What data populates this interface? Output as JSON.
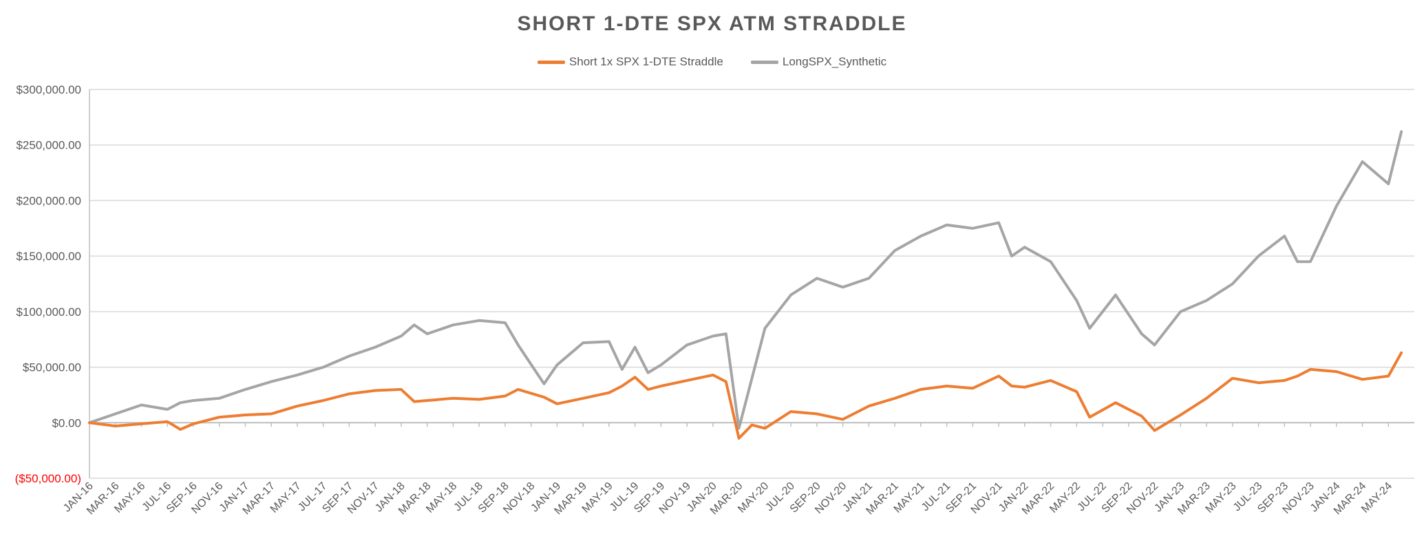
{
  "chart_data": {
    "type": "line",
    "title": "SHORT 1-DTE SPX ATM STRADDLE",
    "xlabel": "",
    "ylabel": "",
    "ylim": [
      -50000,
      300000
    ],
    "y_ticks": [
      300000,
      250000,
      200000,
      150000,
      100000,
      50000,
      0,
      -50000
    ],
    "y_tick_labels": [
      "$300,000.00",
      "$250,000.00",
      "$200,000.00",
      "$150,000.00",
      "$100,000.00",
      "$50,000.00",
      "$0.00",
      "($50,000.00)"
    ],
    "x_tick_labels": [
      "JAN-16",
      "MAR-16",
      "MAY-16",
      "JUL-16",
      "SEP-16",
      "NOV-16",
      "JAN-17",
      "MAR-17",
      "MAY-17",
      "JUL-17",
      "SEP-17",
      "NOV-17",
      "JAN-18",
      "MAR-18",
      "MAY-18",
      "JUL-18",
      "SEP-18",
      "NOV-18",
      "JAN-19",
      "MAR-19",
      "MAY-19",
      "JUL-19",
      "SEP-19",
      "NOV-19",
      "JAN-20",
      "MAR-20",
      "MAY-20",
      "JUL-20",
      "SEP-20",
      "NOV-20",
      "JAN-21",
      "MAR-21",
      "MAY-21",
      "JUL-21",
      "SEP-21",
      "NOV-21",
      "JAN-22",
      "MAR-22",
      "MAY-22",
      "JUL-22",
      "SEP-22",
      "NOV-22",
      "JAN-23",
      "MAR-23",
      "MAY-23",
      "JUL-23",
      "SEP-23",
      "NOV-23",
      "JAN-24",
      "MAR-24",
      "MAY-24"
    ],
    "x": [
      "2016-01",
      "2016-03",
      "2016-05",
      "2016-07",
      "2016-08",
      "2016-09",
      "2016-11",
      "2017-01",
      "2017-03",
      "2017-05",
      "2017-07",
      "2017-09",
      "2017-11",
      "2018-01",
      "2018-02",
      "2018-03",
      "2018-05",
      "2018-07",
      "2018-09",
      "2018-10",
      "2018-12",
      "2019-01",
      "2019-03",
      "2019-05",
      "2019-06",
      "2019-07",
      "2019-08",
      "2019-09",
      "2019-11",
      "2020-01",
      "2020-02",
      "2020-03",
      "2020-04",
      "2020-05",
      "2020-07",
      "2020-09",
      "2020-11",
      "2021-01",
      "2021-03",
      "2021-05",
      "2021-07",
      "2021-09",
      "2021-11",
      "2021-12",
      "2022-01",
      "2022-03",
      "2022-05",
      "2022-06",
      "2022-08",
      "2022-10",
      "2022-11",
      "2023-01",
      "2023-03",
      "2023-05",
      "2023-07",
      "2023-09",
      "2023-10",
      "2023-11",
      "2024-01",
      "2024-03",
      "2024-05",
      "2024-06"
    ],
    "series": [
      {
        "name": "Short 1x SPX 1-DTE Straddle",
        "color": "#ED7D31",
        "values": [
          0,
          -3000,
          -1000,
          1000,
          -6000,
          -1000,
          5000,
          7000,
          8000,
          15000,
          20000,
          26000,
          29000,
          30000,
          19000,
          20000,
          22000,
          21000,
          24000,
          30000,
          23000,
          17000,
          22000,
          27000,
          33000,
          41000,
          30000,
          33000,
          38000,
          43000,
          37000,
          -14000,
          -2000,
          -5000,
          10000,
          8000,
          3000,
          15000,
          22000,
          30000,
          33000,
          31000,
          42000,
          33000,
          32000,
          38000,
          28000,
          5000,
          18000,
          6000,
          -7000,
          7000,
          22000,
          40000,
          36000,
          38000,
          42000,
          48000,
          46000,
          39000,
          42000,
          63000
        ]
      },
      {
        "name": "LongSPX_Synthetic",
        "color": "#A5A5A5",
        "values": [
          0,
          8000,
          16000,
          12000,
          18000,
          20000,
          22000,
          30000,
          37000,
          43000,
          50000,
          60000,
          68000,
          78000,
          88000,
          80000,
          88000,
          92000,
          90000,
          70000,
          35000,
          52000,
          72000,
          73000,
          48000,
          68000,
          45000,
          52000,
          70000,
          78000,
          80000,
          -5000,
          40000,
          85000,
          115000,
          130000,
          122000,
          130000,
          155000,
          168000,
          178000,
          175000,
          180000,
          150000,
          158000,
          145000,
          110000,
          85000,
          115000,
          80000,
          70000,
          100000,
          110000,
          125000,
          150000,
          168000,
          145000,
          145000,
          195000,
          235000,
          215000,
          262000
        ]
      }
    ],
    "grid": true,
    "legend": "top"
  },
  "colors": {
    "text": "#595959",
    "negative_label": "#FF0000",
    "grid": "#D9D9D9"
  }
}
